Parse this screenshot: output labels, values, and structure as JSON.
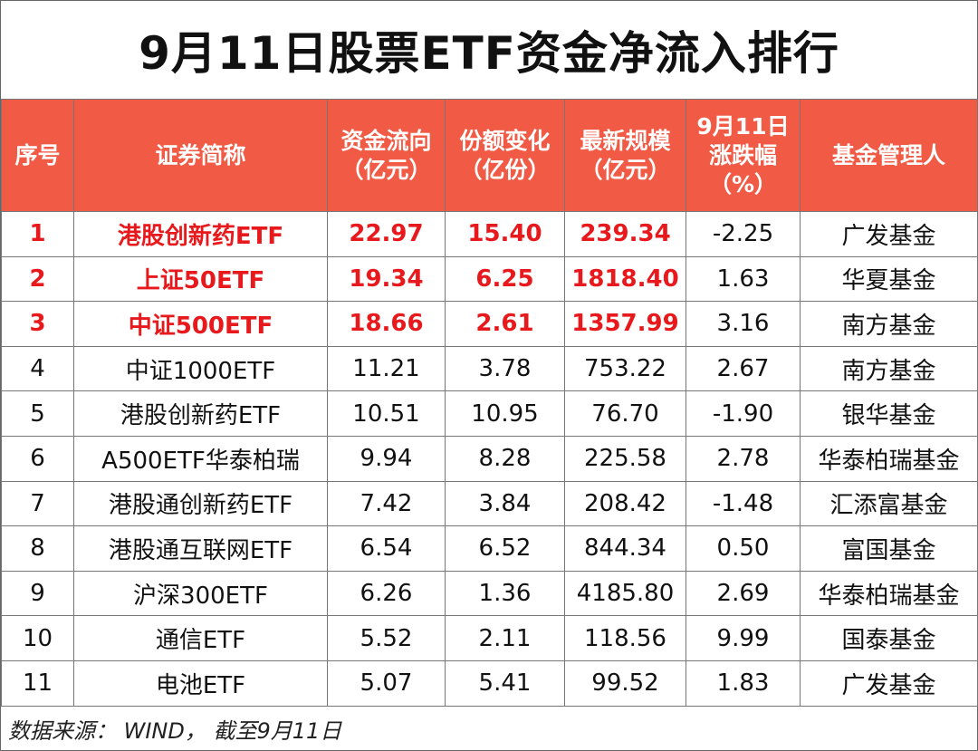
{
  "title": "9月11日股票ETF资金净流入排行",
  "columns": {
    "index": "序号",
    "name": "证券简称",
    "flow": "资金流向（亿元）",
    "share": "份额变化（亿份）",
    "scale": "最新规模（亿元）",
    "change": "9月11日涨跌幅（%）",
    "manager": "基金管理人"
  },
  "rows": [
    {
      "index": "1",
      "name": "港股创新药ETF",
      "flow": "22.97",
      "share": "15.40",
      "scale": "239.34",
      "change": "-2.25",
      "manager": "广发基金"
    },
    {
      "index": "2",
      "name": "上证50ETF",
      "flow": "19.34",
      "share": "6.25",
      "scale": "1818.40",
      "change": "1.63",
      "manager": "华夏基金"
    },
    {
      "index": "3",
      "name": "中证500ETF",
      "flow": "18.66",
      "share": "2.61",
      "scale": "1357.99",
      "change": "3.16",
      "manager": "南方基金"
    },
    {
      "index": "4",
      "name": "中证1000ETF",
      "flow": "11.21",
      "share": "3.78",
      "scale": "753.22",
      "change": "2.67",
      "manager": "南方基金"
    },
    {
      "index": "5",
      "name": "港股创新药ETF",
      "flow": "10.51",
      "share": "10.95",
      "scale": "76.70",
      "change": "-1.90",
      "manager": "银华基金"
    },
    {
      "index": "6",
      "name": "A500ETF华泰柏瑞",
      "flow": "9.94",
      "share": "8.28",
      "scale": "225.58",
      "change": "2.78",
      "manager": "华泰柏瑞基金"
    },
    {
      "index": "7",
      "name": "港股通创新药ETF",
      "flow": "7.42",
      "share": "3.84",
      "scale": "208.42",
      "change": "-1.48",
      "manager": "汇添富基金"
    },
    {
      "index": "8",
      "name": "港股通互联网ETF",
      "flow": "6.54",
      "share": "6.52",
      "scale": "844.34",
      "change": "0.50",
      "manager": "富国基金"
    },
    {
      "index": "9",
      "name": "沪深300ETF",
      "flow": "6.26",
      "share": "1.36",
      "scale": "4185.80",
      "change": "2.69",
      "manager": "华泰柏瑞基金"
    },
    {
      "index": "10",
      "name": "通信ETF",
      "flow": "5.52",
      "share": "2.11",
      "scale": "118.56",
      "change": "9.99",
      "manager": "国泰基金"
    },
    {
      "index": "11",
      "name": "电池ETF",
      "flow": "5.07",
      "share": "5.41",
      "scale": "99.52",
      "change": "1.83",
      "manager": "广发基金"
    }
  ],
  "footer": "数据来源： WIND， 截至9月11日",
  "colors": {
    "header_bg": "#f15a45",
    "highlight_text": "#e8191c"
  }
}
